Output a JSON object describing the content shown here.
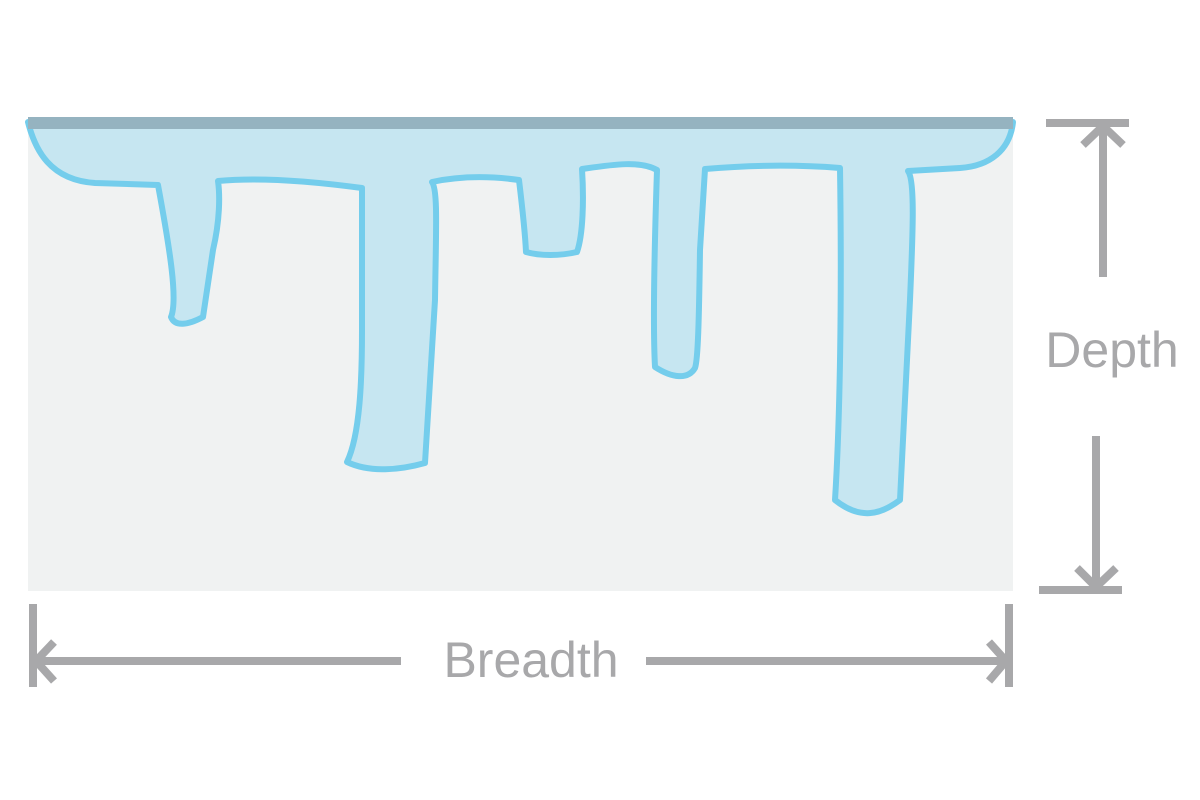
{
  "diagram": {
    "labels": {
      "depth": "Depth",
      "breadth": "Breadth"
    },
    "colors": {
      "background_block": "#f0f2f2",
      "ice_fill": "#c6e6f1",
      "ice_outline": "#74cdec",
      "top_surface": "#95b3c0",
      "dimension_lines": "#a8a8aa"
    }
  }
}
